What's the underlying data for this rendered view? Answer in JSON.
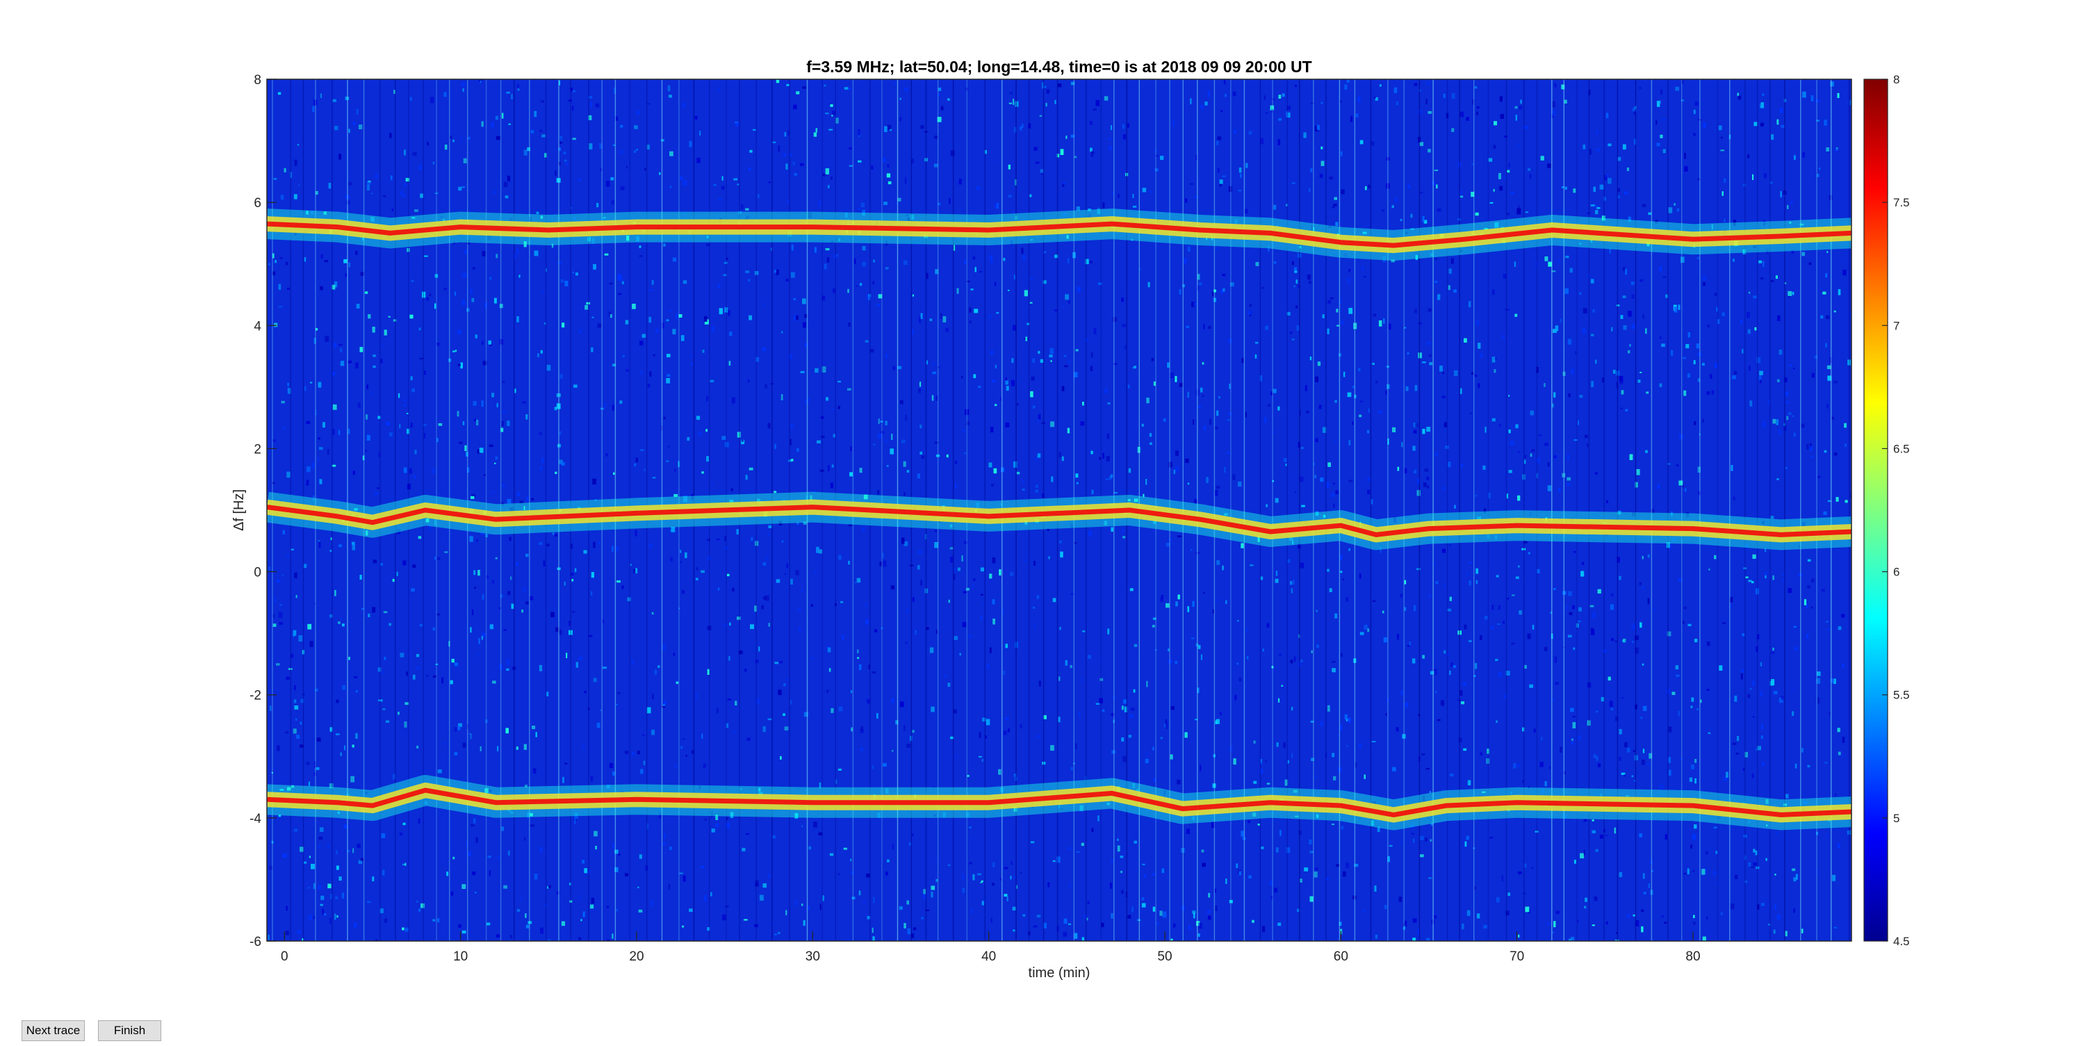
{
  "chart_data": {
    "type": "heatmap",
    "title": "f=3.59 MHz;  lat=50.04; long=14.48, time=0 is at 2018 09 09 20:00 UT",
    "xlabel": "time (min)",
    "ylabel": "Δf [Hz]",
    "xlim": [
      -1,
      89
    ],
    "ylim": [
      -6,
      8
    ],
    "x_ticks": [
      0,
      10,
      20,
      30,
      40,
      50,
      60,
      70,
      80
    ],
    "y_ticks": [
      -6,
      -4,
      -2,
      0,
      2,
      4,
      6,
      8
    ],
    "colorbar": {
      "range": [
        4.5,
        8
      ],
      "ticks": [
        4.5,
        5,
        5.5,
        6,
        6.5,
        7,
        7.5,
        8
      ],
      "colormap": "jet"
    },
    "traces": [
      {
        "x": [
          -1,
          3,
          6,
          10,
          15,
          20,
          30,
          40,
          47,
          52,
          56,
          60,
          63,
          67,
          72,
          80,
          85,
          89
        ],
        "y": [
          5.65,
          5.6,
          5.5,
          5.6,
          5.55,
          5.6,
          5.6,
          5.55,
          5.65,
          5.55,
          5.5,
          5.35,
          5.3,
          5.4,
          5.55,
          5.4,
          5.45,
          5.5
        ]
      },
      {
        "x": [
          -1,
          3,
          5,
          8,
          12,
          20,
          30,
          40,
          48,
          52,
          56,
          60,
          62,
          65,
          70,
          80,
          85,
          89
        ],
        "y": [
          1.05,
          0.9,
          0.8,
          1.0,
          0.85,
          0.95,
          1.05,
          0.9,
          1.0,
          0.85,
          0.65,
          0.75,
          0.6,
          0.7,
          0.75,
          0.7,
          0.6,
          0.65
        ]
      },
      {
        "x": [
          -1,
          3,
          5,
          8,
          12,
          20,
          30,
          40,
          47,
          51,
          56,
          60,
          63,
          66,
          70,
          80,
          85,
          89
        ],
        "y": [
          -3.7,
          -3.75,
          -3.8,
          -3.55,
          -3.75,
          -3.7,
          -3.75,
          -3.75,
          -3.6,
          -3.85,
          -3.75,
          -3.8,
          -3.95,
          -3.8,
          -3.75,
          -3.8,
          -3.95,
          -3.9
        ]
      }
    ]
  },
  "buttons": {
    "next_label": "Next trace",
    "finish_label": "Finish"
  }
}
